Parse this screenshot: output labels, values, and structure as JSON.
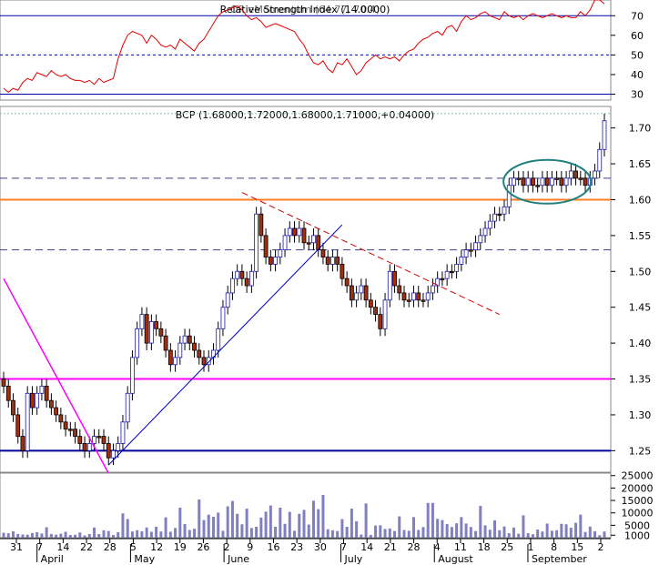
{
  "rsi_title": "Relative Strength Index (14.0000)",
  "rsi_title_overlap": "OR eMomentum (64.77, 70.4)",
  "price_title": "BCP (1.68000,1.72000,1.68000,1.71000,+0.04000)",
  "rsi_ticks": [
    "70",
    "60",
    "50",
    "40",
    "30"
  ],
  "price_ticks": [
    "1.70",
    "1.65",
    "1.60",
    "1.55",
    "1.50",
    "1.45",
    "1.40",
    "1.35",
    "1.30",
    "1.25"
  ],
  "volume_ticks": [
    "25000",
    "20000",
    "15000",
    "10000",
    "5000",
    "1000"
  ],
  "date_ticks": [
    "31",
    "7",
    "14",
    "22",
    "28",
    "5",
    "12",
    "19",
    "26",
    "2",
    "9",
    "16",
    "23",
    "30",
    "7",
    "14",
    "21",
    "28",
    "4",
    "11",
    "18",
    "25",
    "1",
    "8",
    "15",
    "2"
  ],
  "month_labels": [
    "April",
    "May",
    "June",
    "July",
    "August",
    "September"
  ],
  "colors": {
    "up_candle": "#1a1aa8",
    "down_candle": "#a03010",
    "rsi_line": "#e00000",
    "volume_bar": "#8080c0",
    "support_line": "#0000a0",
    "resistance_orange": "#ff7f27",
    "magenta_line": "#ff00ff",
    "downtrend_dashed": "#d00000",
    "uptrend_line": "#0000c0",
    "dashed_levels": "#404080",
    "ellipse": "#208080"
  },
  "chart_data": {
    "type": "candlestick",
    "symbol": "BCP",
    "last_bar": {
      "open": 1.68,
      "high": 1.72,
      "low": 1.68,
      "close": 1.71,
      "change": 0.04
    },
    "price_ylim": [
      1.22,
      1.73
    ],
    "rsi_ylim": [
      27,
      78
    ],
    "volume_ylim": [
      0,
      26000
    ],
    "horizontal_levels": {
      "support": 1.25,
      "magenta": 1.35,
      "orange": 1.6,
      "dashed": [
        1.53,
        1.63
      ],
      "dotted_top": 1.72,
      "rsi_lines": [
        70,
        50,
        30
      ]
    },
    "close": [
      1.34,
      1.32,
      1.3,
      1.27,
      1.25,
      1.33,
      1.31,
      1.33,
      1.34,
      1.32,
      1.31,
      1.3,
      1.29,
      1.28,
      1.28,
      1.27,
      1.26,
      1.25,
      1.26,
      1.27,
      1.27,
      1.26,
      1.24,
      1.25,
      1.26,
      1.29,
      1.33,
      1.38,
      1.42,
      1.44,
      1.4,
      1.43,
      1.42,
      1.41,
      1.39,
      1.37,
      1.38,
      1.4,
      1.41,
      1.4,
      1.39,
      1.38,
      1.37,
      1.38,
      1.39,
      1.42,
      1.45,
      1.47,
      1.49,
      1.5,
      1.49,
      1.48,
      1.5,
      1.58,
      1.55,
      1.52,
      1.51,
      1.52,
      1.53,
      1.55,
      1.56,
      1.55,
      1.56,
      1.54,
      1.54,
      1.55,
      1.53,
      1.52,
      1.51,
      1.52,
      1.51,
      1.49,
      1.48,
      1.46,
      1.47,
      1.48,
      1.46,
      1.45,
      1.44,
      1.42,
      1.46,
      1.5,
      1.48,
      1.47,
      1.46,
      1.46,
      1.47,
      1.46,
      1.46,
      1.47,
      1.48,
      1.49,
      1.49,
      1.5,
      1.5,
      1.51,
      1.52,
      1.53,
      1.53,
      1.54,
      1.55,
      1.56,
      1.57,
      1.58,
      1.58,
      1.59,
      1.62,
      1.63,
      1.63,
      1.62,
      1.63,
      1.62,
      1.62,
      1.63,
      1.62,
      1.63,
      1.63,
      1.62,
      1.63,
      1.64,
      1.63,
      1.63,
      1.62,
      1.63,
      1.64,
      1.67,
      1.71
    ],
    "volume": [
      2000,
      1800,
      2600,
      1500,
      1300,
      1200,
      1900,
      2200,
      1700,
      4200,
      1500,
      1200,
      1600,
      2400,
      1100,
      1200,
      2100,
      900,
      1500,
      4100,
      1500,
      3000,
      2700,
      1100,
      2200,
      9800,
      7500,
      2500,
      3000,
      2600,
      4100,
      2400,
      4400,
      2500,
      8200,
      2400,
      3900,
      12100,
      5500,
      3100,
      3600,
      15400,
      7100,
      9300,
      8400,
      10100,
      2800,
      12600,
      14800,
      9600,
      5400,
      11700,
      3900,
      4400,
      8100,
      10500,
      13000,
      4400,
      12100,
      5600,
      10400,
      2800,
      9600,
      11200,
      5300,
      14900,
      11500,
      17200,
      3400,
      3000,
      2700,
      7500,
      4400,
      11700,
      6600,
      1300,
      13800,
      1100,
      4900,
      5000,
      3500,
      3700,
      2700,
      8600,
      3100,
      2800,
      8300,
      3100,
      4300,
      14000,
      14000,
      7600,
      7100,
      5500,
      4300,
      5800,
      8300,
      5700,
      4300,
      2700,
      12800,
      5000,
      3200,
      7000,
      3000,
      4500,
      1800,
      4100,
      1600,
      9000,
      1800,
      1400,
      3300,
      2500,
      5700,
      2800,
      3000,
      5600,
      5400,
      4000,
      6000,
      9300,
      2300,
      4500,
      2600,
      1000,
      2500
    ],
    "rsi": [
      33,
      31,
      33,
      32,
      36,
      38,
      37,
      41,
      40,
      39,
      42,
      40,
      39,
      40,
      38,
      37,
      37,
      36,
      37,
      35,
      38,
      36,
      37,
      38,
      48,
      55,
      60,
      62,
      61,
      60,
      56,
      60,
      58,
      55,
      54,
      55,
      53,
      58,
      56,
      54,
      52,
      56,
      58,
      62,
      66,
      70,
      72,
      73,
      74,
      75,
      73,
      70,
      68,
      69,
      67,
      64,
      65,
      66,
      65,
      64,
      63,
      62,
      58,
      55,
      50,
      46,
      45,
      47,
      43,
      41,
      46,
      45,
      48,
      44,
      40,
      42,
      46,
      48,
      50,
      48,
      49,
      48,
      49,
      47,
      50,
      52,
      53,
      56,
      58,
      59,
      61,
      62,
      60,
      64,
      65,
      62,
      67,
      70,
      68,
      69,
      71,
      72,
      70,
      69,
      68,
      72,
      70,
      69,
      70,
      68,
      70,
      71,
      70,
      69,
      70,
      71,
      70,
      69,
      70,
      69,
      69,
      72,
      70,
      73,
      78,
      80,
      76
    ]
  }
}
